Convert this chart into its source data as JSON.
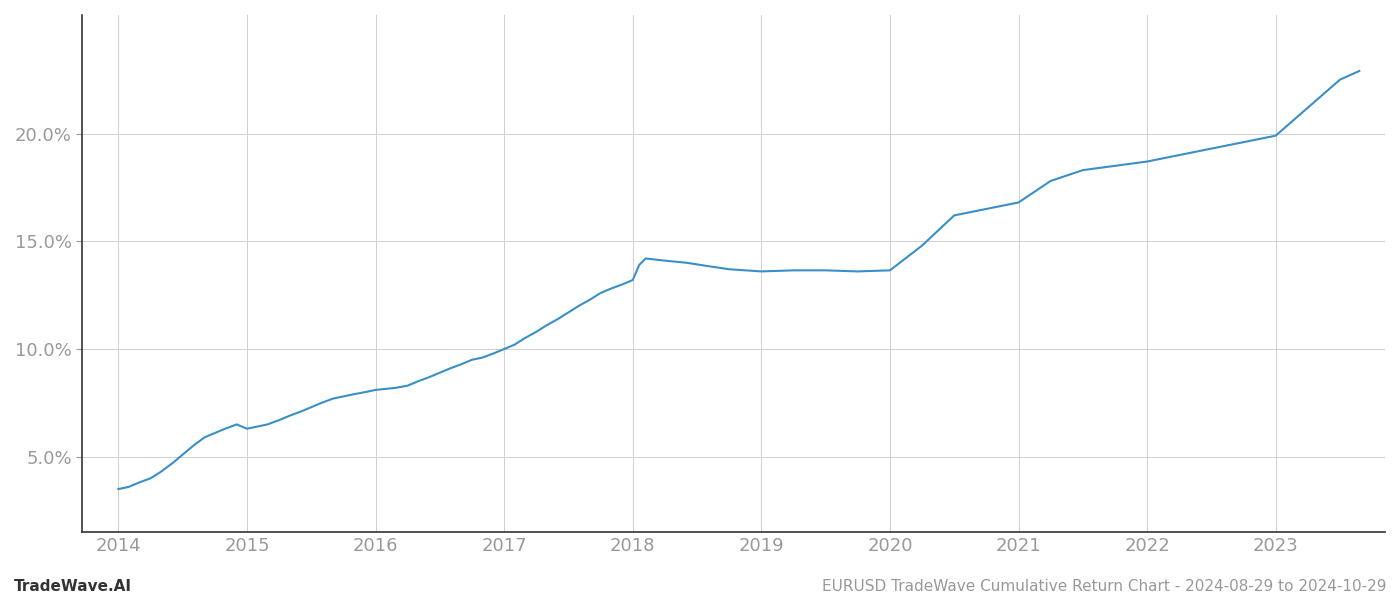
{
  "title": "",
  "footer_left": "TradeWave.AI",
  "footer_right": "EURUSD TradeWave Cumulative Return Chart - 2024-08-29 to 2024-10-29",
  "line_color": "#3a8fc7",
  "background_color": "#ffffff",
  "grid_color": "#d0d0d0",
  "x_years": [
    2014,
    2015,
    2016,
    2017,
    2018,
    2019,
    2020,
    2021,
    2022,
    2023
  ],
  "x_data": [
    2014.0,
    2014.08,
    2014.16,
    2014.25,
    2014.33,
    2014.42,
    2014.5,
    2014.58,
    2014.67,
    2014.75,
    2014.83,
    2014.92,
    2015.0,
    2015.08,
    2015.16,
    2015.25,
    2015.33,
    2015.42,
    2015.5,
    2015.58,
    2015.67,
    2015.75,
    2015.83,
    2015.92,
    2016.0,
    2016.08,
    2016.16,
    2016.25,
    2016.33,
    2016.42,
    2016.5,
    2016.58,
    2016.67,
    2016.75,
    2016.83,
    2016.92,
    2017.0,
    2017.08,
    2017.16,
    2017.25,
    2017.33,
    2017.42,
    2017.5,
    2017.58,
    2017.67,
    2017.75,
    2017.83,
    2017.92,
    2018.0,
    2018.05,
    2018.1,
    2018.25,
    2018.42,
    2018.58,
    2018.75,
    2019.0,
    2019.25,
    2019.5,
    2019.75,
    2020.0,
    2020.25,
    2020.5,
    2020.75,
    2021.0,
    2021.25,
    2021.5,
    2021.75,
    2022.0,
    2022.25,
    2022.5,
    2022.75,
    2023.0,
    2023.25,
    2023.5,
    2023.65
  ],
  "y_data": [
    3.5,
    3.6,
    3.8,
    4.0,
    4.3,
    4.7,
    5.1,
    5.5,
    5.9,
    6.1,
    6.3,
    6.5,
    6.3,
    6.4,
    6.5,
    6.7,
    6.9,
    7.1,
    7.3,
    7.5,
    7.7,
    7.8,
    7.9,
    8.0,
    8.1,
    8.15,
    8.2,
    8.3,
    8.5,
    8.7,
    8.9,
    9.1,
    9.3,
    9.5,
    9.6,
    9.8,
    10.0,
    10.2,
    10.5,
    10.8,
    11.1,
    11.4,
    11.7,
    12.0,
    12.3,
    12.6,
    12.8,
    13.0,
    13.2,
    13.9,
    14.2,
    14.1,
    14.0,
    13.85,
    13.7,
    13.6,
    13.65,
    13.65,
    13.6,
    13.65,
    14.8,
    16.2,
    16.5,
    16.8,
    17.8,
    18.3,
    18.5,
    18.7,
    19.0,
    19.3,
    19.6,
    19.9,
    21.2,
    22.5,
    22.9
  ],
  "yticks": [
    5.0,
    10.0,
    15.0,
    20.0
  ],
  "ylim": [
    1.5,
    25.5
  ],
  "xlim": [
    2013.72,
    2023.85
  ],
  "line_width": 1.5,
  "tick_label_color": "#999999",
  "tick_label_fontsize": 13,
  "footer_fontsize": 11,
  "spine_color": "#333333"
}
